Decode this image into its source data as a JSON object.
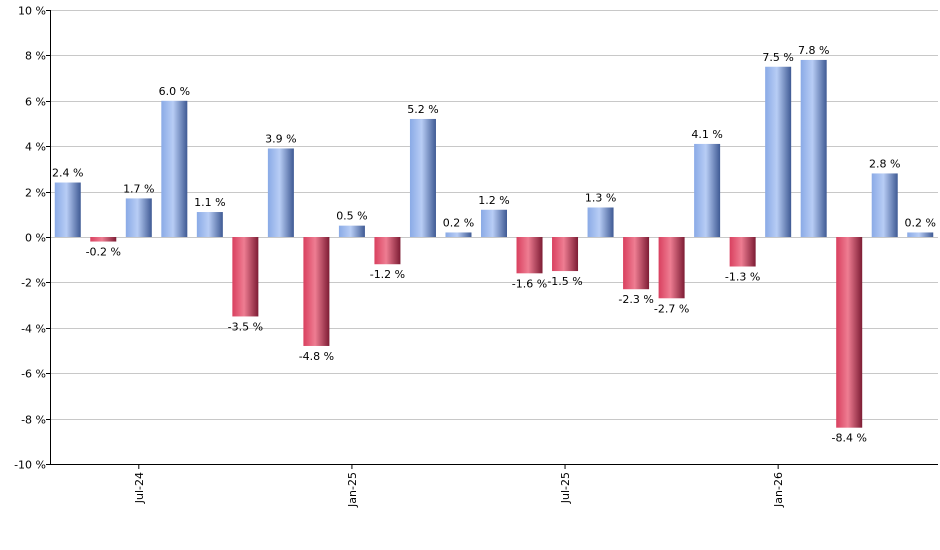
{
  "chart_data": {
    "type": "bar",
    "title": "",
    "xlabel": "",
    "ylabel": "",
    "ylim": [
      -10,
      10
    ],
    "y_ticks": [
      -10,
      -8,
      -6,
      -4,
      -2,
      0,
      2,
      4,
      6,
      8,
      10
    ],
    "y_tick_suffix": " %",
    "x_tick_labels": [
      {
        "label": "Jul-24",
        "index": 2
      },
      {
        "label": "Jan-25",
        "index": 8
      },
      {
        "label": "Jul-25",
        "index": 14
      },
      {
        "label": "Jan-26",
        "index": 20
      }
    ],
    "values": [
      2.4,
      -0.2,
      1.7,
      6.0,
      1.1,
      -3.5,
      3.9,
      -4.8,
      0.5,
      -1.2,
      5.2,
      0.2,
      1.2,
      -1.6,
      -1.5,
      1.3,
      -2.3,
      -2.7,
      4.1,
      -1.3,
      7.5,
      7.8,
      -8.4,
      2.8,
      0.2
    ],
    "value_labels": [
      "2.4 %",
      "-0.2 %",
      "1.7 %",
      "6.0 %",
      "1.1 %",
      "-3.5 %",
      "3.9 %",
      "-4.8 %",
      "0.5 %",
      "-1.2 %",
      "5.2 %",
      "0.2 %",
      "1.2 %",
      "-1.6 %",
      "-1.5 %",
      "1.3 %",
      "-2.3 %",
      "-2.7 %",
      "4.1 %",
      "-1.3 %",
      "7.5 %",
      "7.8 %",
      "-8.4 %",
      "2.8 %",
      "0.2 %"
    ],
    "grid": true,
    "legend": "none",
    "colors": {
      "positive": "#7f9fe0",
      "positive_dark": "#3c5692",
      "negative": "#cc3355",
      "negative_dark": "#7a1a30",
      "grid": "#c8c8c8"
    }
  }
}
